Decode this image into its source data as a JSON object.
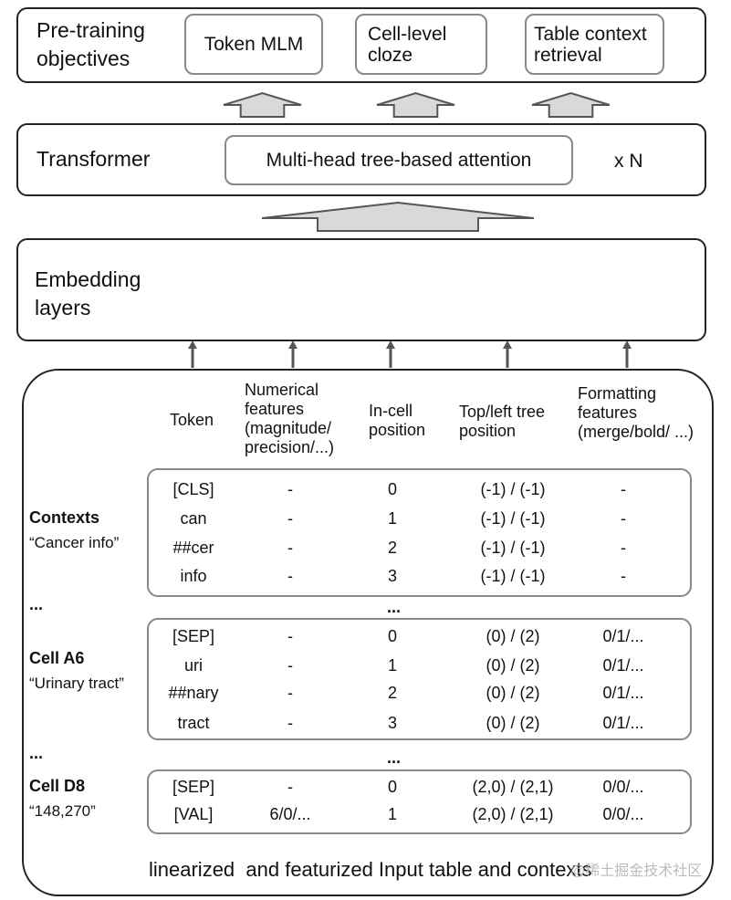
{
  "pretraining": {
    "label": "Pre-training objectives",
    "objectives": [
      "Token MLM",
      "Cell-level cloze",
      "Table context retrieval"
    ]
  },
  "transformer": {
    "label": "Transformer",
    "block": "Multi-head tree-based attention",
    "repeat": "x N"
  },
  "embedding": {
    "label": "Embedding layers",
    "vectors": [
      {
        "color": "#70ad47"
      },
      {
        "color": "#70ad47"
      },
      {
        "color": "#2e75b6"
      },
      {
        "color": "#2e75b6"
      },
      {
        "color": "#ffc000"
      }
    ],
    "plus": "+",
    "ellipsis": "..."
  },
  "input": {
    "headers": [
      "Token",
      "Numerical features (magnitude/ precision/...)",
      "In-cell position",
      "Top/left tree position",
      "Formatting features (merge/bold/ ...)"
    ],
    "groups": [
      {
        "name": "Contexts",
        "desc": "“Cancer info”",
        "rows": [
          [
            "[CLS]",
            "-",
            "0",
            "(-1) / (-1)",
            "-"
          ],
          [
            "can",
            "-",
            "1",
            "(-1) / (-1)",
            "-"
          ],
          [
            "##cer",
            "-",
            "2",
            "(-1) / (-1)",
            "-"
          ],
          [
            "info",
            "-",
            "3",
            "(-1) / (-1)",
            "-"
          ]
        ]
      },
      {
        "name": "Cell A6",
        "desc": "“Urinary tract”",
        "rows": [
          [
            "[SEP]",
            "-",
            "0",
            "(0) / (2)",
            "0/1/..."
          ],
          [
            "uri",
            "-",
            "1",
            "(0) / (2)",
            "0/1/..."
          ],
          [
            "##nary",
            "-",
            "2",
            "(0) / (2)",
            "0/1/..."
          ],
          [
            "tract",
            "-",
            "3",
            "(0) / (2)",
            "0/1/..."
          ]
        ]
      },
      {
        "name": "Cell D8",
        "desc": "“148,270”",
        "rows": [
          [
            "[SEP]",
            "-",
            "0",
            "(2,0) / (2,1)",
            "0/0/..."
          ],
          [
            "[VAL]",
            "6/0/...",
            "1",
            "(2,0) / (2,1)",
            "0/0/..."
          ]
        ]
      }
    ],
    "ellipsis": "...",
    "caption": "linearized  and featurized Input table and contexts"
  },
  "watermark": "@稀土掘金技术社区"
}
